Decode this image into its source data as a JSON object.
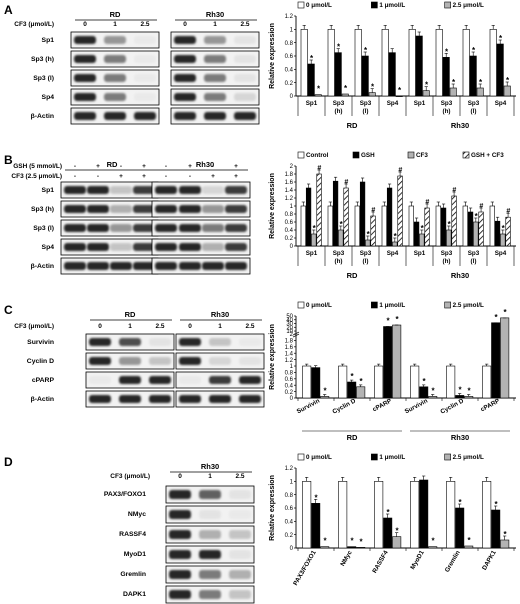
{
  "panels": [
    {
      "letter": "A",
      "blot": {
        "treatment_rows": [
          {
            "label": "CF3 (μmol/L)",
            "left": [
              "0",
              "1",
              "2.5"
            ],
            "right": [
              "0",
              "1",
              "2.5"
            ]
          }
        ],
        "groups": [
          "RD",
          "Rh30"
        ],
        "proteins": [
          "Sp1",
          "Sp3 (h)",
          "Sp3 (l)",
          "Sp4",
          "β-Actin"
        ],
        "intensity": {
          "Sp1": {
            "RD": [
              1.0,
              0.5,
              0.05
            ],
            "Rh30": [
              1.0,
              0.5,
              0.1
            ]
          },
          "Sp3 (h)": {
            "RD": [
              1.0,
              0.6,
              0.05
            ],
            "Rh30": [
              1.0,
              0.6,
              0.1
            ]
          },
          "Sp3 (l)": {
            "RD": [
              1.0,
              0.6,
              0.05
            ],
            "Rh30": [
              1.0,
              0.6,
              0.1
            ]
          },
          "Sp4": {
            "RD": [
              1.0,
              0.6,
              0.05
            ],
            "Rh30": [
              1.0,
              0.6,
              0.2
            ]
          },
          "β-Actin": {
            "RD": [
              1.0,
              1.0,
              1.0
            ],
            "Rh30": [
              1.0,
              1.0,
              1.0
            ]
          }
        }
      },
      "chart_data": {
        "type": "bar",
        "ylabel": "Relative expression",
        "ylim": [
          0,
          1.2
        ],
        "yticks": [
          "0",
          "0.2",
          "0.4",
          "0.6",
          "0.8",
          "1",
          "1.2"
        ],
        "legend": [
          "0 μmol/L",
          "1 μmol/L",
          "2.5 μmol/L"
        ],
        "legend_position": "top",
        "series_colors": [
          "#ffffff",
          "#000000",
          "#b3b3b3"
        ],
        "groups": [
          {
            "name": "RD",
            "categories": [
              "Sp1",
              "Sp3\n(h)",
              "Sp3\n(l)",
              "Sp4"
            ]
          },
          {
            "name": "Rh30",
            "categories": [
              "Sp1",
              "Sp3\n(h)",
              "Sp3\n(l)",
              "Sp4"
            ]
          }
        ],
        "series": [
          {
            "values": [
              1.0,
              1.0,
              1.0,
              1.0,
              1.0,
              1.0,
              1.0,
              1.0
            ]
          },
          {
            "values": [
              0.48,
              0.65,
              0.6,
              0.65,
              0.9,
              0.58,
              0.6,
              0.78
            ]
          },
          {
            "values": [
              0.02,
              0.03,
              0.05,
              0.0,
              0.08,
              0.12,
              0.12,
              0.15
            ]
          }
        ],
        "asterisks": [
          [
            0,
            1
          ],
          [
            0,
            2
          ],
          [
            1,
            1
          ],
          [
            1,
            2
          ],
          [
            2,
            1
          ],
          [
            2,
            2
          ],
          [
            3,
            2
          ],
          [
            4,
            2
          ],
          [
            5,
            1
          ],
          [
            5,
            2
          ],
          [
            6,
            1
          ],
          [
            6,
            2
          ],
          [
            7,
            1
          ],
          [
            7,
            2
          ]
        ],
        "hashes": []
      }
    },
    {
      "letter": "B",
      "blot": {
        "treatment_rows": [
          {
            "label": "GSH (5 mmol/L)",
            "left": [
              "-",
              "+",
              "-",
              "+"
            ],
            "right": [
              "-",
              "+",
              "-",
              "+"
            ]
          },
          {
            "label": "CF3 (2.5 μmol/L)",
            "left": [
              "-",
              "-",
              "+",
              "+"
            ],
            "right": [
              "-",
              "-",
              "+",
              "+"
            ]
          }
        ],
        "groups": [
          "RD",
          "Rh30"
        ],
        "proteins": [
          "Sp1",
          "Sp3 (h)",
          "Sp3 (l)",
          "Sp4",
          "β-Actin"
        ],
        "intensity": {
          "Sp1": {
            "RD": [
              1.0,
              1.0,
              0.3,
              0.9
            ],
            "Rh30": [
              1.0,
              1.0,
              0.2,
              0.9
            ]
          },
          "Sp3 (h)": {
            "RD": [
              1.0,
              1.0,
              0.4,
              0.9
            ],
            "Rh30": [
              1.0,
              1.0,
              0.5,
              0.9
            ]
          },
          "Sp3 (l)": {
            "RD": [
              1.0,
              1.0,
              0.5,
              0.9
            ],
            "Rh30": [
              1.0,
              1.0,
              0.6,
              0.9
            ]
          },
          "Sp4": {
            "RD": [
              1.0,
              1.0,
              0.3,
              0.9
            ],
            "Rh30": [
              1.0,
              1.0,
              0.4,
              0.9
            ]
          },
          "β-Actin": {
            "RD": [
              1.0,
              1.0,
              1.0,
              1.0
            ],
            "Rh30": [
              1.0,
              1.0,
              1.0,
              1.0
            ]
          }
        }
      },
      "chart_data": {
        "type": "bar",
        "ylabel": "Relative expression",
        "ylim": [
          0,
          2
        ],
        "yticks": [
          "0",
          "0.2",
          "0.4",
          "0.6",
          "0.8",
          "1",
          "1.2",
          "1.4",
          "1.6",
          "1.8",
          "2"
        ],
        "legend": [
          "Control",
          "GSH",
          "CF3",
          "GSH + CF3"
        ],
        "legend_position": "top",
        "series_colors": [
          "#ffffff",
          "#000000",
          "#b3b3b3",
          "hatch"
        ],
        "groups": [
          {
            "name": "RD",
            "categories": [
              "Sp1",
              "Sp3\n(h)",
              "Sp3\n(l)",
              "Sp4"
            ]
          },
          {
            "name": "Rh30",
            "categories": [
              "Sp1",
              "Sp3\n(h)",
              "Sp3\n(l)",
              "Sp4"
            ]
          }
        ],
        "series": [
          {
            "values": [
              1.0,
              1.0,
              1.0,
              1.0,
              1.0,
              1.0,
              1.0,
              1.0
            ]
          },
          {
            "values": [
              1.45,
              1.62,
              1.6,
              1.45,
              0.6,
              0.95,
              0.85,
              0.62
            ]
          },
          {
            "values": [
              0.3,
              0.4,
              0.15,
              0.1,
              0.3,
              0.4,
              0.6,
              0.3
            ]
          },
          {
            "values": [
              1.8,
              1.45,
              0.75,
              1.75,
              0.95,
              1.25,
              0.85,
              0.72
            ]
          }
        ],
        "asterisks": [
          [
            0,
            2
          ],
          [
            1,
            2
          ],
          [
            2,
            2
          ],
          [
            3,
            2
          ],
          [
            4,
            2
          ],
          [
            5,
            2
          ],
          [
            6,
            2
          ],
          [
            7,
            2
          ]
        ],
        "hashes": [
          [
            0,
            3
          ],
          [
            1,
            3
          ],
          [
            2,
            3
          ],
          [
            3,
            3
          ],
          [
            4,
            3
          ],
          [
            5,
            3
          ],
          [
            6,
            3
          ],
          [
            7,
            3
          ]
        ]
      }
    },
    {
      "letter": "C",
      "blot": {
        "treatment_rows": [
          {
            "label": "CF3 (μmol/L)",
            "left": [
              "0",
              "1",
              "2.5"
            ],
            "right": [
              "0",
              "1",
              "2.5"
            ]
          }
        ],
        "groups": [
          "RD",
          "Rh30"
        ],
        "proteins": [
          "Survivin",
          "Cyclin D",
          "cPARP",
          "β-Actin"
        ],
        "intensity": {
          "Survivin": {
            "RD": [
              1.0,
              0.8,
              0.1
            ],
            "Rh30": [
              1.0,
              0.3,
              0.05
            ]
          },
          "Cyclin D": {
            "RD": [
              1.0,
              0.5,
              0.3
            ],
            "Rh30": [
              1.0,
              0.2,
              0.1
            ]
          },
          "cPARP": {
            "RD": [
              0.05,
              1.0,
              1.0
            ],
            "Rh30": [
              0.05,
              0.9,
              1.0
            ]
          },
          "β-Actin": {
            "RD": [
              1.0,
              1.0,
              1.0
            ],
            "Rh30": [
              1.0,
              1.0,
              1.0
            ]
          }
        }
      },
      "chart_data": {
        "type": "bar",
        "ylabel": "Relative expression",
        "ylim": [
          0,
          50
        ],
        "scale": "broken-axis",
        "yticks": [
          "0",
          "0.2",
          "0.4",
          "0.6",
          "0.8",
          "1",
          "1.2",
          "1.4",
          "1.6",
          "1.8",
          "2",
          "10",
          "20",
          "30",
          "40",
          "50"
        ],
        "legend": [
          "0 μmol/L",
          "1 μmol/L",
          "2.5 μmol/L"
        ],
        "legend_position": "top",
        "series_colors": [
          "#ffffff",
          "#000000",
          "#b3b3b3"
        ],
        "groups": [
          {
            "name": "RD",
            "categories": [
              "Survivin",
              "Cyclin D",
              "cPARP"
            ]
          },
          {
            "name": "Rh30",
            "categories": [
              "Survivin",
              "Cyclin D",
              "cPARP"
            ]
          }
        ],
        "series": [
          {
            "values": [
              1.0,
              1.0,
              1.0,
              1.0,
              1.0,
              1.0
            ]
          },
          {
            "values": [
              0.95,
              0.5,
              22,
              0.35,
              0.08,
              32
            ]
          },
          {
            "values": [
              0.05,
              0.35,
              26,
              0.05,
              0.05,
              45
            ]
          }
        ],
        "asterisks": [
          [
            0,
            2
          ],
          [
            1,
            1
          ],
          [
            1,
            2
          ],
          [
            2,
            1
          ],
          [
            2,
            2
          ],
          [
            3,
            1
          ],
          [
            3,
            2
          ],
          [
            4,
            1
          ],
          [
            4,
            2
          ],
          [
            5,
            1
          ],
          [
            5,
            2
          ]
        ],
        "hashes": []
      }
    },
    {
      "letter": "D",
      "blot": {
        "treatment_rows": [
          {
            "label": "CF3 (μmol/L)",
            "left": [
              "0",
              "1",
              "2.5"
            ],
            "right": []
          }
        ],
        "groups": [
          "Rh30"
        ],
        "proteins": [
          "PAX3/FOXO1",
          "NMyc",
          "RASSF4",
          "MyoD1",
          "Gremlin",
          "DAPK1",
          "β-Actin"
        ],
        "intensity": {
          "PAX3/FOXO1": {
            "Rh30": [
              1.0,
              0.7,
              0.1
            ]
          },
          "NMyc": {
            "Rh30": [
              1.0,
              0.1,
              0.05
            ]
          },
          "RASSF4": {
            "Rh30": [
              1.0,
              0.4,
              0.3
            ]
          },
          "MyoD1": {
            "Rh30": [
              1.0,
              1.0,
              0.1
            ]
          },
          "Gremlin": {
            "Rh30": [
              1.0,
              0.6,
              0.4
            ]
          },
          "DAPK1": {
            "Rh30": [
              1.0,
              0.6,
              0.3
            ]
          },
          "β-Actin": {
            "Rh30": [
              1.0,
              1.0,
              1.0
            ]
          }
        }
      },
      "chart_data": {
        "type": "bar",
        "ylabel": "Relative expression",
        "ylim": [
          0,
          1.2
        ],
        "yticks": [
          "0",
          "0.2",
          "0.4",
          "0.6",
          "0.8",
          "1",
          "1.2"
        ],
        "legend": [
          "0 μmol/L",
          "1 μmol/L",
          "2.5 μmol/L"
        ],
        "legend_position": "top",
        "series_colors": [
          "#ffffff",
          "#000000",
          "#b3b3b3"
        ],
        "groups": [
          {
            "name": "",
            "categories": [
              "PAX3/FOXO1",
              "NMyc",
              "RASSF4",
              "MyoD1",
              "Gremlin",
              "DAPK1"
            ]
          }
        ],
        "series": [
          {
            "values": [
              1.0,
              1.0,
              1.0,
              1.0,
              1.0,
              1.0
            ]
          },
          {
            "values": [
              0.67,
              0.02,
              0.45,
              1.02,
              0.6,
              0.57
            ]
          },
          {
            "values": [
              0.02,
              0.01,
              0.17,
              0.02,
              0.03,
              0.12
            ]
          }
        ],
        "asterisks": [
          [
            0,
            1
          ],
          [
            0,
            2
          ],
          [
            1,
            1
          ],
          [
            1,
            2
          ],
          [
            2,
            1
          ],
          [
            2,
            2
          ],
          [
            3,
            2
          ],
          [
            4,
            1
          ],
          [
            4,
            2
          ],
          [
            5,
            1
          ],
          [
            5,
            2
          ]
        ],
        "hashes": []
      }
    }
  ]
}
